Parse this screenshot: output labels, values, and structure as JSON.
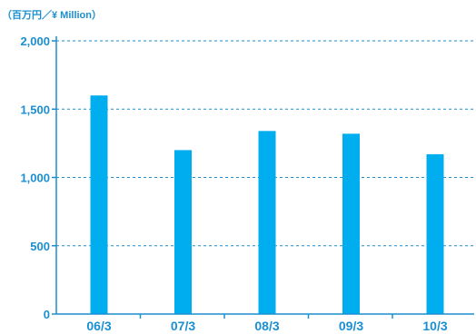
{
  "colors": {
    "bar": "#00adef",
    "axis": "#1a8fd1",
    "grid": "#1a8fd1",
    "text": "#1a8fd1"
  },
  "chart_data": {
    "type": "bar",
    "unit_label": "（百万円／¥ Million）",
    "categories": [
      "06/3",
      "07/3",
      "08/3",
      "09/3",
      "10/3"
    ],
    "values": [
      1600,
      1200,
      1340,
      1320,
      1170
    ],
    "yticks": [
      0,
      500,
      1000,
      1500,
      2000
    ],
    "ytick_labels": [
      "0",
      "500",
      "1,000",
      "1,500",
      "2,000"
    ],
    "ylim": [
      0,
      2000
    ],
    "grid": "horizontal dashed"
  }
}
